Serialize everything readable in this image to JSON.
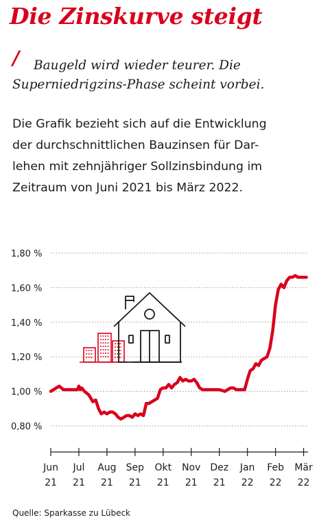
{
  "header": {
    "title": "Die Zinskurve steigt",
    "slash": "/",
    "subtitle_line1": "Baugeld wird wieder teurer. Die",
    "subtitle_line2": "Superniedrigzins-Phase scheint vorbei."
  },
  "description": {
    "line1": "Die Grafik bezieht sich auf die Entwicklung",
    "line2": "der durchschnittlichen Bauzinsen für Dar-",
    "line3": "lehen mit zehnjähriger Sollzinsbindung im",
    "line4": "Zeitraum von Juni 2021 bis März 2022."
  },
  "chart_data": {
    "type": "line",
    "title": "",
    "xlabel": "",
    "ylabel": "",
    "ylim": [
      0.7,
      1.85
    ],
    "yticks": [
      0.8,
      1.0,
      1.2,
      1.4,
      1.6,
      1.8
    ],
    "ytick_labels": [
      "0,80 %",
      "1,00 %",
      "1,20 %",
      "1,40 %",
      "1,60 %",
      "1,80 %"
    ],
    "xlim": [
      0,
      9.1
    ],
    "xticks": [
      0,
      1,
      2,
      3,
      4,
      5,
      6,
      7,
      8,
      9
    ],
    "xtick_labels": [
      {
        "month": "Jun",
        "year": "21"
      },
      {
        "month": "Jul",
        "year": "21"
      },
      {
        "month": "Aug",
        "year": "21"
      },
      {
        "month": "Sep",
        "year": "21"
      },
      {
        "month": "Okt",
        "year": "21"
      },
      {
        "month": "Nov",
        "year": "21"
      },
      {
        "month": "Dez",
        "year": "21"
      },
      {
        "month": "Jan",
        "year": "22"
      },
      {
        "month": "Feb",
        "year": "22"
      },
      {
        "month": "Mär",
        "year": "22"
      }
    ],
    "grid": "horizontal-dotted",
    "series": [
      {
        "color": "#d9001b",
        "x": [
          0.0,
          0.1,
          0.2,
          0.3,
          0.45,
          0.6,
          0.8,
          0.95,
          1.0,
          1.05,
          1.1,
          1.2,
          1.35,
          1.5,
          1.6,
          1.7,
          1.8,
          1.9,
          2.0,
          2.1,
          2.2,
          2.3,
          2.4,
          2.5,
          2.6,
          2.7,
          2.8,
          2.9,
          3.0,
          3.1,
          3.2,
          3.3,
          3.4,
          3.5,
          3.6,
          3.7,
          3.8,
          3.9,
          4.0,
          4.1,
          4.2,
          4.3,
          4.4,
          4.5,
          4.6,
          4.7,
          4.8,
          4.9,
          5.0,
          5.1,
          5.2,
          5.3,
          5.4,
          5.5,
          5.6,
          5.8,
          6.0,
          6.2,
          6.4,
          6.5,
          6.6,
          6.7,
          6.8,
          6.9,
          7.0,
          7.1,
          7.2,
          7.3,
          7.4,
          7.5,
          7.6,
          7.7,
          7.8,
          7.9,
          8.0,
          8.1,
          8.2,
          8.3,
          8.4,
          8.5,
          8.6,
          8.7,
          8.8,
          8.9,
          9.1
        ],
        "values": [
          1.0,
          1.01,
          1.02,
          1.03,
          1.01,
          1.01,
          1.01,
          1.01,
          1.03,
          1.01,
          1.02,
          1.0,
          0.98,
          0.94,
          0.95,
          0.9,
          0.87,
          0.88,
          0.87,
          0.88,
          0.88,
          0.87,
          0.85,
          0.84,
          0.85,
          0.86,
          0.86,
          0.85,
          0.87,
          0.86,
          0.87,
          0.86,
          0.93,
          0.93,
          0.94,
          0.95,
          0.96,
          1.01,
          1.02,
          1.02,
          1.04,
          1.02,
          1.04,
          1.05,
          1.08,
          1.06,
          1.07,
          1.06,
          1.06,
          1.07,
          1.05,
          1.02,
          1.01,
          1.01,
          1.01,
          1.01,
          1.01,
          1.0,
          1.02,
          1.02,
          1.01,
          1.01,
          1.01,
          1.01,
          1.07,
          1.12,
          1.13,
          1.16,
          1.15,
          1.18,
          1.19,
          1.2,
          1.25,
          1.35,
          1.5,
          1.59,
          1.62,
          1.6,
          1.64,
          1.66,
          1.66,
          1.67,
          1.66,
          1.66,
          1.66
        ]
      }
    ]
  },
  "icons": {
    "building": "apartment-building-icon",
    "house": "house-icon",
    "color": "#d9001b"
  },
  "source": "Quelle: Sparkasse zu Lübeck"
}
